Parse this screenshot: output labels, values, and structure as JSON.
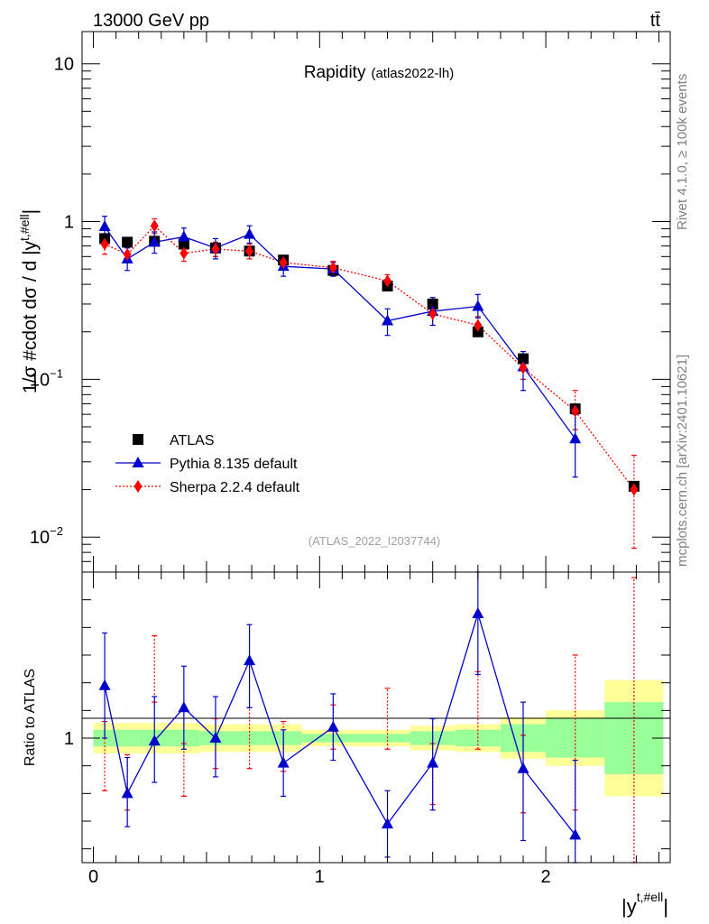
{
  "header": {
    "energy_label": "13000 GeV pp",
    "process_label": "tt̄"
  },
  "side_labels": {
    "rivet": "Rivet 4.1.0, ≥ 100k events",
    "mcplots": "mcplots.cern.ch [arXiv:2401.10621]"
  },
  "colors": {
    "atlas": "#000000",
    "pythia": "#0000cc",
    "sherpa": "#ff0000",
    "band_inner": "#99ff99",
    "band_outer": "#ffff99"
  },
  "chart_data": [
    {
      "type": "scatter",
      "panel": "main",
      "title": "Rapidity",
      "subtitle": "(atlas2022-lh)",
      "ylabel": "1/σ #cdot dσ / d |y^{t,#ell}|",
      "yscale": "log",
      "ylim": [
        0.006,
        16
      ],
      "xlim": [
        -0.05,
        2.55
      ],
      "watermark": "(ATLAS_2022_I2037744)",
      "y_tick_labels": [
        {
          "value": 0.01,
          "base": "10",
          "exp": "−2"
        },
        {
          "value": 0.1,
          "base": "10",
          "exp": "−1"
        },
        {
          "value": 1,
          "base": "1",
          "exp": ""
        },
        {
          "value": 10,
          "base": "10",
          "exp": ""
        }
      ],
      "legend": [
        "ATLAS",
        "Pythia 8.135 default",
        "Sherpa 2.2.4 default"
      ],
      "series": [
        {
          "name": "ATLAS",
          "style": "square-marker",
          "x": [
            0.05,
            0.15,
            0.27,
            0.4,
            0.54,
            0.69,
            0.84,
            1.06,
            1.3,
            1.5,
            1.7,
            1.9,
            2.13,
            2.39
          ],
          "y": [
            0.78,
            0.74,
            0.75,
            0.72,
            0.68,
            0.65,
            0.57,
            0.49,
            0.39,
            0.3,
            0.2,
            0.135,
            0.065,
            0.021
          ]
        },
        {
          "name": "Pythia 8.135 default",
          "style": "triangle-line",
          "x": [
            0.05,
            0.15,
            0.27,
            0.4,
            0.54,
            0.69,
            0.84,
            1.06,
            1.3,
            1.5,
            1.7,
            1.9,
            2.13
          ],
          "y": [
            0.93,
            0.58,
            0.74,
            0.8,
            0.68,
            0.83,
            0.52,
            0.5,
            0.235,
            0.27,
            0.29,
            0.12,
            0.042
          ],
          "err_low": [
            0.78,
            0.49,
            0.63,
            0.7,
            0.58,
            0.73,
            0.45,
            0.45,
            0.19,
            0.22,
            0.245,
            0.085,
            0.024
          ],
          "err_high": [
            1.08,
            0.68,
            0.86,
            0.91,
            0.78,
            0.94,
            0.59,
            0.55,
            0.28,
            0.33,
            0.345,
            0.15,
            0.06
          ]
        },
        {
          "name": "Sherpa 2.2.4 default",
          "style": "diamond-dotted",
          "x": [
            0.05,
            0.15,
            0.27,
            0.4,
            0.54,
            0.69,
            0.84,
            1.06,
            1.3,
            1.5,
            1.7,
            1.9,
            2.13,
            2.39
          ],
          "y": [
            0.72,
            0.62,
            0.94,
            0.63,
            0.67,
            0.65,
            0.55,
            0.51,
            0.42,
            0.26,
            0.22,
            0.118,
            0.063,
            0.02
          ],
          "err_low": [
            0.62,
            0.55,
            0.84,
            0.56,
            0.6,
            0.58,
            0.5,
            0.47,
            0.38,
            0.22,
            0.19,
            0.1,
            0.048,
            0.0085
          ],
          "err_high": [
            0.83,
            0.7,
            1.04,
            0.71,
            0.74,
            0.72,
            0.6,
            0.56,
            0.46,
            0.3,
            0.25,
            0.135,
            0.085,
            0.033
          ]
        }
      ]
    },
    {
      "type": "scatter",
      "panel": "ratio",
      "ylabel": "Ratio to ATLAS",
      "xlabel": "|y^{t,#ell}|",
      "ylim": [
        0.55,
        1.6
      ],
      "xlim": [
        -0.05,
        2.55
      ],
      "x_tick_labels": [
        {
          "value": 0,
          "label": "0"
        },
        {
          "value": 1,
          "label": "1"
        },
        {
          "value": 2,
          "label": "2"
        }
      ],
      "y_tick_labels": [
        {
          "value": 1,
          "label": "1"
        }
      ],
      "band_edges": [
        0.0,
        0.1,
        0.2,
        0.34,
        0.47,
        0.61,
        0.77,
        0.92,
        1.2,
        1.4,
        1.6,
        1.8,
        2.0,
        2.26,
        2.52
      ],
      "band_inner_low": [
        0.97,
        0.97,
        0.97,
        0.97,
        0.975,
        0.975,
        0.975,
        0.985,
        0.985,
        0.975,
        0.97,
        0.95,
        0.93,
        0.87
      ],
      "band_inner_high": [
        1.03,
        1.03,
        1.03,
        1.03,
        1.025,
        1.025,
        1.025,
        1.015,
        1.015,
        1.025,
        1.03,
        1.05,
        1.07,
        1.13
      ],
      "band_outer_low": [
        0.945,
        0.945,
        0.945,
        0.945,
        0.95,
        0.95,
        0.95,
        0.97,
        0.97,
        0.955,
        0.95,
        0.925,
        0.9,
        0.79
      ],
      "band_outer_high": [
        1.055,
        1.055,
        1.055,
        1.055,
        1.05,
        1.05,
        1.05,
        1.03,
        1.03,
        1.045,
        1.05,
        1.075,
        1.1,
        1.21
      ],
      "series": [
        {
          "name": "Pythia 8.135 default",
          "x": [
            0.05,
            0.15,
            0.27,
            0.4,
            0.54,
            0.69,
            0.84,
            1.06,
            1.3,
            1.5,
            1.7,
            1.9,
            2.13
          ],
          "y": [
            1.19,
            0.8,
            0.99,
            1.11,
            1.0,
            1.28,
            0.91,
            1.04,
            0.69,
            0.91,
            1.45,
            0.89,
            0.65
          ],
          "err_low": [
            1.0,
            0.68,
            0.84,
            0.96,
            0.86,
            1.11,
            0.79,
            0.92,
            0.57,
            0.74,
            1.23,
            0.63,
            0.37
          ],
          "err_high": [
            1.38,
            0.93,
            1.15,
            1.26,
            1.15,
            1.41,
            1.03,
            1.16,
            0.81,
            1.07,
            1.67,
            1.13,
            0.92
          ]
        },
        {
          "name": "Sherpa 2.2.4 default",
          "x": [
            0.05,
            0.15,
            0.27,
            0.4,
            0.54,
            0.69,
            0.84,
            1.06,
            1.3,
            1.5,
            1.7,
            1.9,
            2.13,
            2.39
          ],
          "y": [
            0.93,
            0.84,
            1.25,
            0.88,
            0.98,
            1.0,
            0.97,
            1.04,
            1.07,
            0.87,
            1.1,
            0.87,
            0.97,
            0.95
          ],
          "err_low": [
            0.81,
            0.74,
            1.13,
            0.79,
            0.89,
            0.89,
            0.88,
            0.96,
            0.96,
            0.76,
            0.96,
            0.73,
            0.74,
            0.41
          ],
          "err_high": [
            1.06,
            0.94,
            1.37,
            0.98,
            1.07,
            1.11,
            1.06,
            1.12,
            1.18,
            0.98,
            1.24,
            1.01,
            1.3,
            1.58
          ]
        }
      ]
    }
  ]
}
